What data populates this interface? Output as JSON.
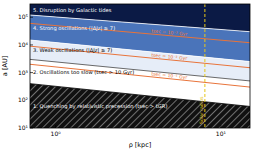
{
  "chart_data": {
    "type": "region",
    "log": true,
    "xlabel": "ρ [kpc]",
    "ylabel": "a [AU]",
    "xlim": [
      0.7,
      15
    ],
    "ylim": [
      10,
      300000
    ],
    "xticks": [
      {
        "value": 1,
        "label": "10⁰"
      },
      {
        "value": 10,
        "label": "10¹"
      }
    ],
    "yticks": [
      {
        "value": 10,
        "label": "10¹"
      },
      {
        "value": 100,
        "label": "10²"
      },
      {
        "value": 1000,
        "label": "10³"
      },
      {
        "value": 10000,
        "label": "10⁴"
      },
      {
        "value": 100000,
        "label": "10⁵"
      }
    ],
    "boundaries": [
      {
        "color": "#ffffff",
        "x": [
          0.7,
          15
        ],
        "values": [
          120000,
          30000
        ]
      },
      {
        "color": "#ffffff",
        "x": [
          0.7,
          15
        ],
        "values": [
          15000,
          2500
        ]
      },
      {
        "color": "#444444",
        "x": [
          0.7,
          15
        ],
        "values": [
          3000,
          500
        ]
      },
      {
        "color": "#000000",
        "x": [
          0.7,
          15
        ],
        "values": [
          400,
          60
        ]
      }
    ],
    "regions": [
      {
        "label": "5. Disruption by Galactic tides",
        "color": "#0b1a45"
      },
      {
        "label": "4. Strong oscillations (|ΔJz| ≥ 7)",
        "color": "#4a74ba"
      },
      {
        "label": "3. Weak oscillations (|ΔJz| ≥ 7)",
        "color": "#e6edf8"
      },
      {
        "label": "2. Oscillations too slow (tsec > 10 Gyr)",
        "color": "#ffffff"
      },
      {
        "label": "1. Quenching by relativistic precession (tsec > tGR)",
        "color": "#111111",
        "hatch": true
      }
    ],
    "series": [
      {
        "name": "tsec = 10⁻³ Gyr",
        "color": "#e8743b",
        "x": [
          0.7,
          15
        ],
        "values": [
          60000,
          12000
        ],
        "line_style": "solid"
      },
      {
        "name": "tsec = 10⁻² Gyr",
        "color": "#e8743b",
        "x": [
          0.7,
          15
        ],
        "values": [
          9000,
          1500
        ],
        "line_style": "solid"
      },
      {
        "name": "tsec = 10⁻¹ Gyr",
        "color": "#e8743b",
        "x": [
          0.7,
          15
        ],
        "values": [
          2000,
          300
        ],
        "line_style": "solid"
      }
    ],
    "vlines": [
      {
        "x": 8,
        "label": "Solar radius",
        "color": "#e6c619",
        "line_style": "dashed"
      }
    ]
  }
}
